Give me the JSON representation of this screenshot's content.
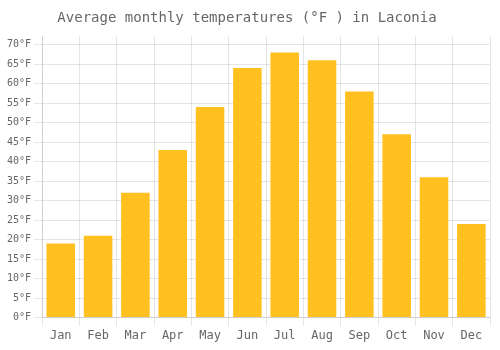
{
  "chart_data": {
    "type": "bar",
    "title": "Average monthly temperatures (°F ) in Laconia",
    "categories": [
      "Jan",
      "Feb",
      "Mar",
      "Apr",
      "May",
      "Jun",
      "Jul",
      "Aug",
      "Sep",
      "Oct",
      "Nov",
      "Dec"
    ],
    "values": [
      19,
      21,
      32,
      43,
      54,
      64,
      68,
      66,
      58,
      47,
      36,
      24
    ],
    "color": "#FFC020",
    "ylim": [
      0,
      72
    ],
    "yticks": [
      {
        "value": 0,
        "label": "0°F"
      },
      {
        "value": 5,
        "label": "5°F"
      },
      {
        "value": 10,
        "label": "10°F"
      },
      {
        "value": 15,
        "label": "15°F"
      },
      {
        "value": 20,
        "label": "20°F"
      },
      {
        "value": 25,
        "label": "25°F"
      },
      {
        "value": 30,
        "label": "30°F"
      },
      {
        "value": 35,
        "label": "35°F"
      },
      {
        "value": 40,
        "label": "40°F"
      },
      {
        "value": 45,
        "label": "45°F"
      },
      {
        "value": 50,
        "label": "50°F"
      },
      {
        "value": 55,
        "label": "55°F"
      },
      {
        "value": 60,
        "label": "60°F"
      },
      {
        "value": 65,
        "label": "65°F"
      },
      {
        "value": 70,
        "label": "70°F"
      }
    ],
    "grid": true
  }
}
